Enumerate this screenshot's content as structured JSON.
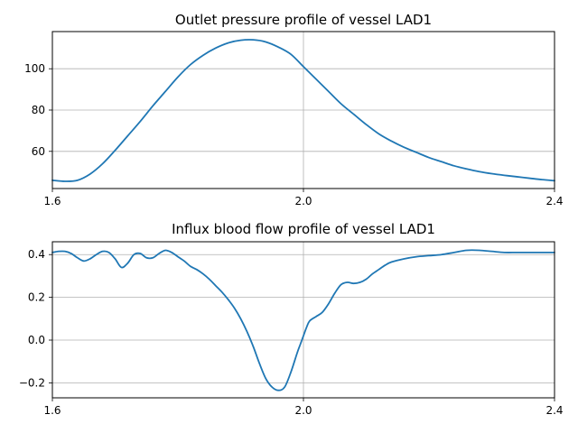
{
  "chart_data": [
    {
      "type": "line",
      "title": "Outlet pressure profile of vessel LAD1",
      "xlabel": "",
      "ylabel": "",
      "xlim": [
        1.6,
        2.4
      ],
      "ylim": [
        42,
        118
      ],
      "xticks": [
        1.6,
        2.0,
        2.4
      ],
      "xtick_labels": [
        "1.6",
        "2.0",
        "2.4"
      ],
      "yticks": [
        60,
        80,
        100
      ],
      "ytick_labels": [
        "60",
        "80",
        "100"
      ],
      "grid": true,
      "color": "#1f77b4",
      "x": [
        1.6,
        1.62,
        1.64,
        1.66,
        1.68,
        1.7,
        1.72,
        1.74,
        1.76,
        1.78,
        1.8,
        1.82,
        1.84,
        1.86,
        1.88,
        1.9,
        1.92,
        1.94,
        1.96,
        1.98,
        2.0,
        2.02,
        2.04,
        2.06,
        2.08,
        2.1,
        2.12,
        2.14,
        2.16,
        2.18,
        2.2,
        2.22,
        2.24,
        2.26,
        2.28,
        2.3,
        2.32,
        2.34,
        2.36,
        2.38,
        2.4
      ],
      "y": [
        46,
        45.5,
        46,
        49,
        54,
        60.5,
        67.5,
        74.5,
        82,
        89,
        96,
        102,
        106.5,
        110,
        112.5,
        113.8,
        114,
        113,
        110.5,
        107,
        101,
        95,
        89,
        83,
        78,
        73,
        68.5,
        65,
        62,
        59.5,
        57,
        55,
        53,
        51.5,
        50.2,
        49.2,
        48.4,
        47.7,
        47,
        46.3,
        45.8
      ]
    },
    {
      "type": "line",
      "title": "Influx blood flow profile of vessel LAD1",
      "xlabel": "",
      "ylabel": "",
      "xlim": [
        1.6,
        2.4
      ],
      "ylim": [
        -0.27,
        0.46
      ],
      "xticks": [
        1.6,
        2.0,
        2.4
      ],
      "xtick_labels": [
        "1.6",
        "2.0",
        "2.4"
      ],
      "yticks": [
        -0.2,
        0.0,
        0.2,
        0.4
      ],
      "ytick_labels": [
        "−0.2",
        "0.0",
        "0.2",
        "0.4"
      ],
      "grid": true,
      "color": "#1f77b4",
      "x": [
        1.6,
        1.61,
        1.62,
        1.63,
        1.64,
        1.65,
        1.66,
        1.67,
        1.68,
        1.69,
        1.7,
        1.71,
        1.72,
        1.73,
        1.74,
        1.75,
        1.76,
        1.77,
        1.78,
        1.79,
        1.8,
        1.81,
        1.82,
        1.83,
        1.84,
        1.85,
        1.86,
        1.87,
        1.88,
        1.89,
        1.9,
        1.91,
        1.92,
        1.93,
        1.94,
        1.95,
        1.96,
        1.97,
        1.98,
        1.99,
        1.995,
        2.0,
        2.005,
        2.01,
        2.02,
        2.03,
        2.04,
        2.05,
        2.06,
        2.07,
        2.08,
        2.09,
        2.1,
        2.11,
        2.12,
        2.13,
        2.14,
        2.16,
        2.18,
        2.2,
        2.22,
        2.24,
        2.26,
        2.28,
        2.3,
        2.32,
        2.34,
        2.36,
        2.38,
        2.4
      ],
      "y": [
        0.41,
        0.415,
        0.415,
        0.405,
        0.385,
        0.37,
        0.38,
        0.4,
        0.415,
        0.41,
        0.38,
        0.34,
        0.36,
        0.4,
        0.405,
        0.385,
        0.385,
        0.405,
        0.42,
        0.41,
        0.39,
        0.37,
        0.345,
        0.33,
        0.31,
        0.285,
        0.255,
        0.225,
        0.19,
        0.15,
        0.1,
        0.04,
        -0.03,
        -0.11,
        -0.18,
        -0.22,
        -0.235,
        -0.22,
        -0.15,
        -0.06,
        -0.02,
        0.02,
        0.06,
        0.09,
        0.11,
        0.13,
        0.17,
        0.22,
        0.26,
        0.27,
        0.265,
        0.27,
        0.285,
        0.31,
        0.33,
        0.35,
        0.365,
        0.38,
        0.39,
        0.395,
        0.4,
        0.41,
        0.42,
        0.42,
        0.415,
        0.41,
        0.41,
        0.41,
        0.41,
        0.41
      ]
    }
  ]
}
